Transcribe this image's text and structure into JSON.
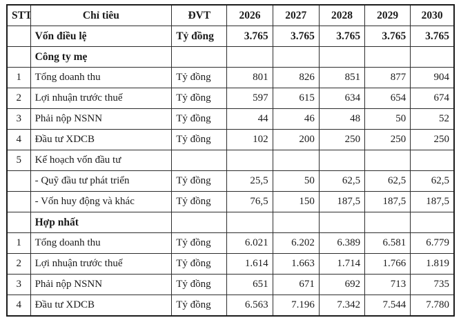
{
  "table": {
    "unit_note": "Tỷ đồng",
    "columns": [
      "STT",
      "Chỉ tiêu",
      "ĐVT",
      "2026",
      "2027",
      "2028",
      "2029",
      "2030"
    ],
    "rows": [
      {
        "stt": "",
        "label": "Vốn điều lệ",
        "unit": "Tỷ đồng",
        "values": [
          "3.765",
          "3.765",
          "3.765",
          "3.765",
          "3.765"
        ],
        "bold": true
      },
      {
        "stt": "",
        "label": "Công ty mẹ",
        "unit": "",
        "values": [
          "",
          "",
          "",
          "",
          ""
        ],
        "bold": true
      },
      {
        "stt": "1",
        "label": "Tổng doanh thu",
        "unit": "Tỷ đồng",
        "values": [
          "801",
          "826",
          "851",
          "877",
          "904"
        ],
        "bold": false
      },
      {
        "stt": "2",
        "label": "Lợi nhuận trước thuế",
        "unit": "Tỷ đồng",
        "values": [
          "597",
          "615",
          "634",
          "654",
          "674"
        ],
        "bold": false
      },
      {
        "stt": "3",
        "label": "Phải nộp NSNN",
        "unit": "Tỷ đồng",
        "values": [
          "44",
          "46",
          "48",
          "50",
          "52"
        ],
        "bold": false
      },
      {
        "stt": "4",
        "label": "Đầu tư XDCB",
        "unit": "Tỷ đồng",
        "values": [
          "102",
          "200",
          "250",
          "250",
          "250"
        ],
        "bold": false
      },
      {
        "stt": "5",
        "label": "Kế hoạch vốn đầu tư",
        "unit": "",
        "values": [
          "",
          "",
          "",
          "",
          ""
        ],
        "bold": false
      },
      {
        "stt": "",
        "label": "- Quỹ đầu tư phát triển",
        "unit": "Tỷ đồng",
        "values": [
          "25,5",
          "50",
          "62,5",
          "62,5",
          "62,5"
        ],
        "bold": false
      },
      {
        "stt": "",
        "label": "- Vốn huy động và khác",
        "unit": "Tỷ đồng",
        "values": [
          "76,5",
          "150",
          "187,5",
          "187,5",
          "187,5"
        ],
        "bold": false
      },
      {
        "stt": "",
        "label": "Hợp nhất",
        "unit": "",
        "values": [
          "",
          "",
          "",
          "",
          ""
        ],
        "bold": true
      },
      {
        "stt": "1",
        "label": "Tổng doanh thu",
        "unit": "Tỷ đồng",
        "values": [
          "6.021",
          "6.202",
          "6.389",
          "6.581",
          "6.779"
        ],
        "bold": false
      },
      {
        "stt": "2",
        "label": "Lợi nhuận trước thuế",
        "unit": "Tỷ đồng",
        "values": [
          "1.614",
          "1.663",
          "1.714",
          "1.766",
          "1.819"
        ],
        "bold": false
      },
      {
        "stt": "3",
        "label": "Phải nộp NSNN",
        "unit": "Tỷ đồng",
        "values": [
          "651",
          "671",
          "692",
          "713",
          "735"
        ],
        "bold": false
      },
      {
        "stt": "4",
        "label": "Đầu tư XDCB",
        "unit": "Tỷ đồng",
        "values": [
          "6.563",
          "7.196",
          "7.342",
          "7.544",
          "7.780"
        ],
        "bold": false
      }
    ]
  }
}
